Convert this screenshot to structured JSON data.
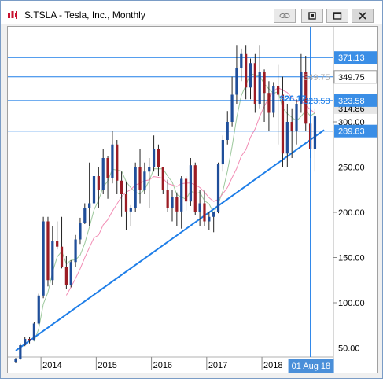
{
  "window": {
    "title": "S.TSLA - Tesla, Inc., Monthly",
    "buttons": [
      "link-icon",
      "restore-icon",
      "maximize-icon",
      "close-icon"
    ]
  },
  "chart_data": {
    "type": "candlestick",
    "title": "S.TSLA - Tesla, Inc., Monthly",
    "x_ticks": [
      "2014",
      "2015",
      "2016",
      "2017",
      "2018"
    ],
    "y_ticks": [
      50,
      100,
      150,
      200,
      250,
      300
    ],
    "ylim": [
      40,
      400
    ],
    "horizontal_lines": [
      {
        "label": "371.13",
        "value": 371.13
      },
      {
        "label": "349.75",
        "value": 349.75
      },
      {
        "label": "323.58",
        "value": 323.58
      },
      {
        "label": "289.83",
        "value": 289.83
      }
    ],
    "price_labels": [
      {
        "label": "314.86",
        "value": 314.86,
        "style": "current"
      },
      {
        "label": "349.75",
        "value": 349.75,
        "style": "faint"
      },
      {
        "label": "323.58",
        "value": 323.58,
        "style": "faint"
      }
    ],
    "overlay_label": "$26.17",
    "cursor_label": "01 Aug 18",
    "trendline": {
      "from": {
        "bar": 0,
        "value": 47
      },
      "to": {
        "bar": 67,
        "value": 291
      }
    },
    "colors": {
      "up": "#1f4e9a",
      "down": "#9b1c24",
      "line": "#1e7ee8",
      "ma_fast": "#9cc89c",
      "ma_slow": "#f28cb4"
    },
    "candles": [
      [
        34.0,
        39.0,
        33.0,
        37.9
      ],
      [
        37.9,
        55.0,
        37.0,
        53.0
      ],
      [
        53.0,
        62.0,
        52.0,
        60.0
      ],
      [
        60.0,
        62.0,
        55.0,
        58.0
      ],
      [
        58.0,
        79.0,
        58.0,
        77.0
      ],
      [
        77.0,
        110.0,
        76.0,
        108.0
      ],
      [
        108.0,
        195.0,
        105.0,
        190.0
      ],
      [
        190.0,
        195.0,
        118.0,
        125.0
      ],
      [
        125.0,
        185.0,
        120.0,
        168.0
      ],
      [
        168.0,
        190.0,
        159.0,
        162.0
      ],
      [
        162.0,
        195.0,
        138.0,
        140.0
      ],
      [
        140.0,
        152.0,
        115.0,
        120.0
      ],
      [
        120.0,
        147.0,
        117.0,
        145.0
      ],
      [
        145.0,
        175.0,
        140.0,
        170.0
      ],
      [
        170.0,
        194.0,
        165.0,
        188.0
      ],
      [
        188.0,
        210.0,
        187.0,
        205.0
      ],
      [
        205.0,
        255.0,
        185.0,
        210.0
      ],
      [
        210.0,
        245.0,
        200.0,
        240.0
      ],
      [
        240.0,
        250.0,
        205.0,
        225.0
      ],
      [
        225.0,
        270.0,
        220.0,
        260.0
      ],
      [
        260.0,
        262.0,
        215.0,
        238.0
      ],
      [
        238.0,
        290.0,
        232.0,
        275.0
      ],
      [
        275.0,
        280.0,
        220.0,
        235.0
      ],
      [
        235.0,
        245.0,
        195.0,
        220.0
      ],
      [
        220.0,
        234.0,
        180.0,
        201.0
      ],
      [
        201.0,
        208.0,
        185.0,
        205.0
      ],
      [
        205.0,
        255.0,
        200.0,
        250.0
      ],
      [
        250.0,
        270.0,
        210.0,
        225.0
      ],
      [
        225.0,
        255.0,
        220.0,
        245.0
      ],
      [
        245.0,
        260.0,
        205.0,
        250.0
      ],
      [
        250.0,
        285.0,
        245.0,
        270.0
      ],
      [
        270.0,
        275.0,
        240.0,
        250.0
      ],
      [
        250.0,
        250.0,
        220.0,
        225.0
      ],
      [
        225.0,
        236.0,
        200.0,
        205.0
      ],
      [
        205.0,
        225.0,
        190.0,
        217.0
      ],
      [
        217.0,
        222.0,
        185.0,
        201.0
      ],
      [
        201.0,
        240.0,
        182.0,
        237.0
      ],
      [
        237.0,
        240.0,
        202.0,
        212.0
      ],
      [
        212.0,
        260.0,
        207.0,
        252.0
      ],
      [
        252.0,
        255.0,
        197.0,
        200.0
      ],
      [
        200.0,
        225.0,
        185.0,
        210.0
      ],
      [
        210.0,
        224.0,
        185.0,
        190.0
      ],
      [
        190.0,
        200.0,
        180.0,
        195.0
      ],
      [
        195.0,
        200.0,
        178.0,
        200.0
      ],
      [
        200.0,
        255.0,
        199.0,
        253.0
      ],
      [
        253.0,
        285.0,
        245.0,
        280.0
      ],
      [
        280.0,
        312.0,
        275.0,
        300.0
      ],
      [
        300.0,
        350.0,
        295.0,
        330.0
      ],
      [
        330.0,
        385.0,
        320.0,
        360.0
      ],
      [
        360.0,
        381.0,
        345.0,
        375.0
      ],
      [
        375.0,
        385.0,
        325.0,
        338.0
      ],
      [
        338.0,
        370.0,
        325.0,
        365.0
      ],
      [
        365.0,
        375.0,
        310.0,
        320.0
      ],
      [
        320.0,
        385.0,
        315.0,
        355.0
      ],
      [
        355.0,
        358.0,
        300.0,
        332.0
      ],
      [
        332.0,
        345.0,
        290.0,
        310.0
      ],
      [
        310.0,
        344.0,
        305.0,
        340.0
      ],
      [
        340.0,
        363.0,
        275.0,
        330.0
      ],
      [
        330.0,
        350.0,
        250.0,
        265.0
      ],
      [
        265.0,
        320.0,
        250.0,
        300.0
      ],
      [
        300.0,
        315.0,
        260.0,
        290.0
      ],
      [
        290.0,
        325.0,
        275.0,
        320.0
      ],
      [
        320.0,
        375.0,
        310.0,
        355.0
      ],
      [
        355.0,
        373.0,
        290.0,
        298.0
      ],
      [
        298.0,
        315.0,
        260.0,
        270.0
      ],
      [
        270.0,
        315.0,
        245.0,
        306.0
      ]
    ]
  }
}
